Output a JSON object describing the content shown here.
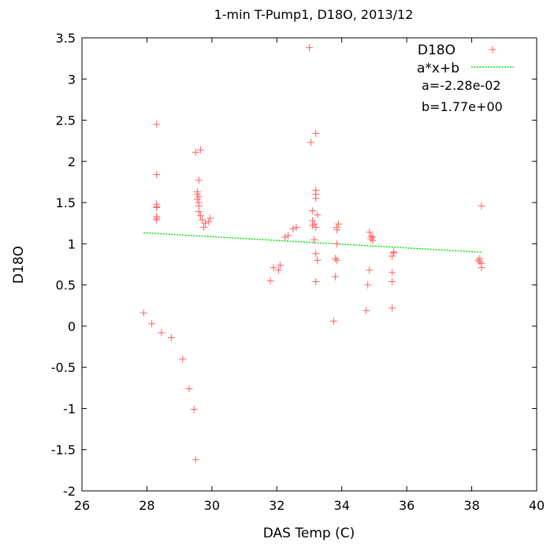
{
  "chart_data": {
    "type": "scatter",
    "title": "1-min T-Pump1, D18O, 2013/12",
    "xlabel": "DAS Temp (C)",
    "ylabel": "D18O",
    "xlim": [
      26,
      40
    ],
    "ylim": [
      -2,
      3.5
    ],
    "xticks": [
      26,
      28,
      30,
      32,
      34,
      36,
      38,
      40
    ],
    "yticks": [
      -2,
      -1.5,
      -1,
      -0.5,
      0,
      0.5,
      1,
      1.5,
      2,
      2.5,
      3,
      3.5
    ],
    "grid": false,
    "legend_position": "top-right",
    "series": [
      {
        "name": "D18O",
        "kind": "scatter",
        "marker": "plus",
        "color": "#ff6060",
        "points": [
          [
            27.9,
            0.16
          ],
          [
            28.15,
            0.03
          ],
          [
            28.45,
            -0.08
          ],
          [
            28.75,
            -0.14
          ],
          [
            29.1,
            -0.4
          ],
          [
            29.3,
            -0.76
          ],
          [
            29.45,
            -1.01
          ],
          [
            29.5,
            -1.62
          ],
          [
            28.3,
            2.45
          ],
          [
            28.3,
            1.84
          ],
          [
            28.3,
            1.48
          ],
          [
            28.3,
            1.45
          ],
          [
            28.3,
            1.44
          ],
          [
            28.3,
            1.33
          ],
          [
            28.3,
            1.31
          ],
          [
            28.3,
            1.29
          ],
          [
            29.5,
            2.11
          ],
          [
            29.65,
            2.14
          ],
          [
            29.6,
            1.77
          ],
          [
            29.55,
            1.63
          ],
          [
            29.55,
            1.6
          ],
          [
            29.6,
            1.57
          ],
          [
            29.55,
            1.54
          ],
          [
            29.6,
            1.5
          ],
          [
            29.6,
            1.46
          ],
          [
            29.6,
            1.39
          ],
          [
            29.65,
            1.34
          ],
          [
            29.7,
            1.29
          ],
          [
            29.95,
            1.31
          ],
          [
            29.9,
            1.27
          ],
          [
            29.8,
            1.25
          ],
          [
            29.75,
            1.2
          ],
          [
            31.8,
            0.55
          ],
          [
            31.9,
            0.71
          ],
          [
            32.05,
            0.68
          ],
          [
            32.1,
            0.74
          ],
          [
            32.25,
            1.08
          ],
          [
            32.35,
            1.1
          ],
          [
            32.5,
            1.18
          ],
          [
            32.6,
            1.2
          ],
          [
            33.0,
            3.38
          ],
          [
            33.05,
            2.23
          ],
          [
            33.2,
            2.34
          ],
          [
            33.1,
            1.4
          ],
          [
            33.2,
            1.65
          ],
          [
            33.2,
            1.6
          ],
          [
            33.2,
            1.55
          ],
          [
            33.25,
            1.35
          ],
          [
            33.1,
            1.28
          ],
          [
            33.15,
            1.24
          ],
          [
            33.1,
            1.22
          ],
          [
            33.2,
            1.2
          ],
          [
            33.15,
            1.05
          ],
          [
            33.2,
            0.88
          ],
          [
            33.25,
            0.8
          ],
          [
            33.2,
            0.54
          ],
          [
            33.75,
            0.06
          ],
          [
            33.8,
            0.6
          ],
          [
            33.8,
            0.82
          ],
          [
            33.85,
            0.8
          ],
          [
            33.85,
            1.0
          ],
          [
            33.85,
            1.17
          ],
          [
            33.85,
            1.2
          ],
          [
            33.9,
            1.24
          ],
          [
            34.75,
            0.19
          ],
          [
            34.8,
            0.5
          ],
          [
            34.85,
            0.68
          ],
          [
            34.85,
            1.14
          ],
          [
            34.9,
            1.09
          ],
          [
            34.9,
            1.06
          ],
          [
            34.95,
            1.04
          ],
          [
            34.95,
            1.08
          ],
          [
            35.55,
            0.22
          ],
          [
            35.55,
            0.54
          ],
          [
            35.55,
            0.65
          ],
          [
            35.55,
            0.85
          ],
          [
            35.6,
            0.89
          ],
          [
            35.6,
            0.9
          ],
          [
            38.2,
            0.8
          ],
          [
            38.25,
            0.78
          ],
          [
            38.25,
            0.82
          ],
          [
            38.3,
            0.76
          ],
          [
            38.3,
            0.71
          ],
          [
            38.3,
            1.46
          ]
        ]
      },
      {
        "name": "a*x+b",
        "kind": "line",
        "dashed": true,
        "color": "#00dd00",
        "slope": -0.0228,
        "intercept": 1.77,
        "x": [
          27.9,
          38.3
        ]
      }
    ],
    "annotations": [
      "a=-2.28e-02",
      "b=1.77e+00"
    ]
  }
}
